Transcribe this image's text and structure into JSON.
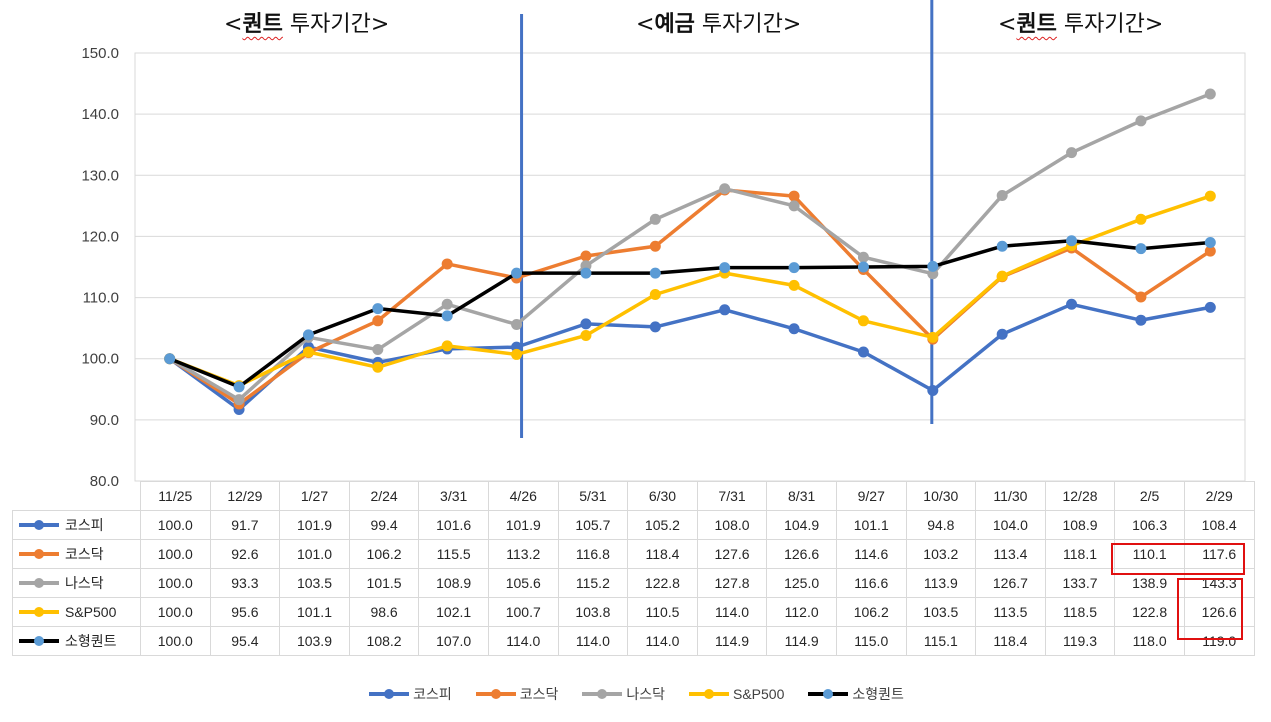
{
  "annotations": [
    {
      "prefix": "<",
      "bold": "퀀트",
      "suffix": " 투자기간>"
    },
    {
      "prefix": "<",
      "bold": "예금",
      "suffix": " 투자기간>"
    },
    {
      "prefix": "<",
      "bold": "퀀트",
      "suffix": " 투자기간>"
    }
  ],
  "colors": {
    "코스피": "#4472c4",
    "코스닥": "#ed7d31",
    "나스닥": "#a5a5a5",
    "S&P500": "#ffc000",
    "소형퀀트": "#000000",
    "소형퀀트_marker": "#5b9bd5",
    "divider": "#4472c4",
    "highlight": "#e01010"
  },
  "chart_data": {
    "type": "line",
    "categories": [
      "11/25",
      "12/29",
      "1/27",
      "2/24",
      "3/31",
      "4/26",
      "5/31",
      "6/30",
      "7/31",
      "8/31",
      "9/27",
      "10/30",
      "11/30",
      "12/28",
      "2/5",
      "2/29"
    ],
    "ylim": [
      80,
      150
    ],
    "yticks": [
      "80.0",
      "90.0",
      "100.0",
      "110.0",
      "120.0",
      "130.0",
      "140.0",
      "150.0"
    ],
    "grid": true,
    "legend": "bottom",
    "data_table": true,
    "series": [
      {
        "name": "코스피",
        "values": [
          100.0,
          91.7,
          101.9,
          99.4,
          101.6,
          101.9,
          105.7,
          105.2,
          108.0,
          104.9,
          101.1,
          94.8,
          104.0,
          108.9,
          106.3,
          108.4
        ]
      },
      {
        "name": "코스닥",
        "values": [
          100.0,
          92.6,
          101.0,
          106.2,
          115.5,
          113.2,
          116.8,
          118.4,
          127.6,
          126.6,
          114.6,
          103.2,
          113.4,
          118.1,
          110.1,
          117.6
        ]
      },
      {
        "name": "나스닥",
        "values": [
          100.0,
          93.3,
          103.5,
          101.5,
          108.9,
          105.6,
          115.2,
          122.8,
          127.8,
          125.0,
          116.6,
          113.9,
          126.7,
          133.7,
          138.9,
          143.3
        ]
      },
      {
        "name": "S&P500",
        "values": [
          100.0,
          95.6,
          101.1,
          98.6,
          102.1,
          100.7,
          103.8,
          110.5,
          114.0,
          112.0,
          106.2,
          103.5,
          113.5,
          118.5,
          122.8,
          126.6
        ]
      },
      {
        "name": "소형퀀트",
        "values": [
          100.0,
          95.4,
          103.9,
          108.2,
          107.0,
          114.0,
          114.0,
          114.0,
          114.9,
          114.9,
          115.0,
          115.1,
          118.4,
          119.3,
          118.0,
          119.0
        ]
      }
    ]
  }
}
